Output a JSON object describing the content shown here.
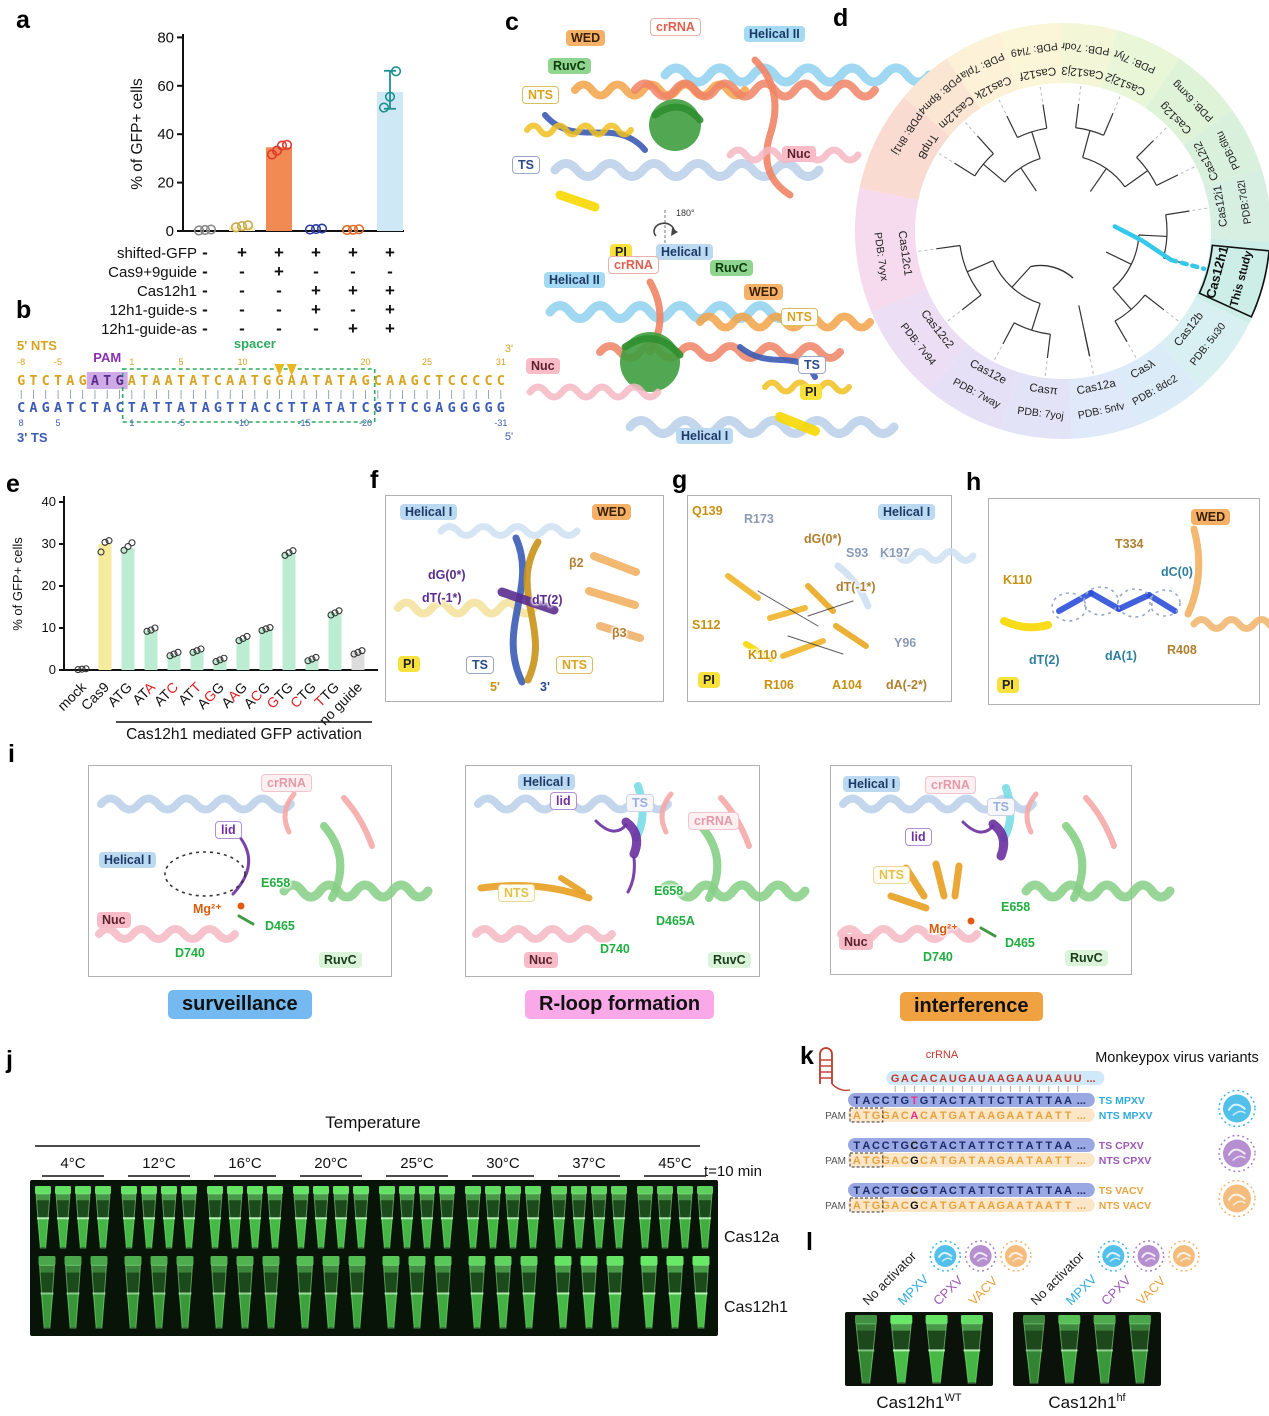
{
  "panels": {
    "a": "a",
    "b": "b",
    "c": "c",
    "d": "d",
    "e": "e",
    "f": "f",
    "g": "g",
    "h": "h",
    "i": "i",
    "j": "j",
    "k": "k",
    "l": "l"
  },
  "chart_data": [
    {
      "type": "bar",
      "panel": "a",
      "title": "",
      "ylabel": "% of GFP+ cells",
      "xlabel": "",
      "ylim": [
        0,
        80
      ],
      "yticks": [
        0,
        20,
        40,
        60,
        80
      ],
      "grid": false,
      "categories": [
        "1",
        "2",
        "3",
        "4",
        "5",
        "6"
      ],
      "values": [
        0.4,
        1.9,
        34.6,
        0.8,
        0.5,
        57.5
      ],
      "points": [
        [
          0.2,
          0.4,
          0.6
        ],
        [
          1.5,
          2.0,
          2.4
        ],
        [
          31.6,
          33.2,
          35.3,
          35.6
        ],
        [
          0.6,
          0.8,
          1.0
        ],
        [
          0.4,
          0.5,
          0.7
        ],
        [
          51.0,
          55.5,
          66.0
        ]
      ],
      "bar_colors": [
        "none",
        "#f6eec6",
        "#f28a54",
        "none",
        "none",
        "#cfe8f6"
      ],
      "point_colors": [
        "#8a8a8a",
        "#c9a94b",
        "#e03a2e",
        "#2b3aa0",
        "#e06b28",
        "#1f9090"
      ],
      "error_bars": [
        null,
        null,
        null,
        null,
        null,
        [
          50.5,
          66.2
        ]
      ],
      "condition_rows": [
        "shifted-GFP",
        "Cas9+9guide",
        "Cas12h1",
        "12h1-guide-s",
        "12h1-guide-as"
      ],
      "condition_matrix": [
        [
          "-",
          "+",
          "+",
          "+",
          "+",
          "+"
        ],
        [
          "-",
          "-",
          "+",
          "-",
          "-",
          "-"
        ],
        [
          "-",
          "-",
          "-",
          "+",
          "+",
          "+"
        ],
        [
          "-",
          "-",
          "-",
          "+",
          "-",
          "+"
        ],
        [
          "-",
          "-",
          "-",
          "-",
          "+",
          "+"
        ]
      ]
    },
    {
      "type": "bar",
      "panel": "e",
      "title": "",
      "ylabel": "% of GFP+ cells",
      "xlabel": "Cas12h1 mediated GFP activation",
      "ylim": [
        0,
        40
      ],
      "yticks": [
        0,
        10,
        20,
        30,
        40
      ],
      "grid": false,
      "categories": [
        "mock",
        "Cas9",
        "ATG",
        "ATA",
        "ATC",
        "ATT",
        "AGG",
        "AAG",
        "ACG",
        "GTG",
        "CTG",
        "TTG",
        "no guide"
      ],
      "red_letter_indices": [
        [],
        [],
        [],
        [
          2
        ],
        [
          2
        ],
        [
          2
        ],
        [
          1
        ],
        [
          1
        ],
        [
          1
        ],
        [
          0
        ],
        [
          0
        ],
        [
          0
        ],
        []
      ],
      "values": [
        0.2,
        30.0,
        29.0,
        9.4,
        3.7,
        4.5,
        2.4,
        7.4,
        9.7,
        27.9,
        2.6,
        13.6,
        4.1
      ],
      "points": [
        [
          0.1,
          0.2,
          0.3
        ],
        [
          28.1,
          30.4,
          30.8
        ],
        [
          28.5,
          29.4,
          30.3
        ],
        [
          9.2,
          9.5,
          10.0
        ],
        [
          3.4,
          3.8,
          4.2
        ],
        [
          4.2,
          4.6,
          5.0
        ],
        [
          2.0,
          2.4,
          2.8
        ],
        [
          7.0,
          7.5,
          8.0
        ],
        [
          9.4,
          9.8,
          10.1
        ],
        [
          27.3,
          27.9,
          28.4
        ],
        [
          2.2,
          2.6,
          3.0
        ],
        [
          13.1,
          13.6,
          14.1
        ],
        [
          3.8,
          4.2,
          4.6
        ]
      ],
      "bar_colors": [
        "none",
        "#f6ea9c",
        "#bcecd2",
        "#bcecd2",
        "#bcecd2",
        "#bcecd2",
        "#bcecd2",
        "#bcecd2",
        "#bcecd2",
        "#bcecd2",
        "#bcecd2",
        "#bcecd2",
        "#dcdcdc"
      ],
      "bracket_span": [
        2,
        12
      ]
    }
  ],
  "panel_b": {
    "label_5nts": "5' NTS",
    "label_3ts": "3' TS",
    "pam_label": "PAM",
    "spacer_label": "spacer",
    "top_3end": "3'",
    "bottom_5end": "5'",
    "top": {
      "prefix": "GTCTAG",
      "pam": "ATG",
      "spacer": "ATAATATCAATGGAATATAG",
      "suffix": "CAAGCTCCCCC"
    },
    "bottom": {
      "prefix": "CAGATCTAC",
      "spacer": "TATTATAGTTACCTTATATC",
      "suffix": "GTTCGAGGGGG"
    },
    "top_numbers": [
      {
        "n": "-8",
        "i": 0
      },
      {
        "n": "-5",
        "i": 3
      },
      {
        "n": "1",
        "i": 9
      },
      {
        "n": "5",
        "i": 13
      },
      {
        "n": "10",
        "i": 18
      },
      {
        "n": "20",
        "i": 28
      },
      {
        "n": "25",
        "i": 33
      },
      {
        "n": "31",
        "i": 39
      }
    ],
    "bottom_numbers": [
      {
        "n": "8",
        "i": 0
      },
      {
        "n": "5",
        "i": 3
      },
      {
        "n": "1",
        "i": 9
      },
      {
        "n": "-5",
        "i": 13
      },
      {
        "n": "-10",
        "i": 18
      },
      {
        "n": "-15",
        "i": 23
      },
      {
        "n": "-20",
        "i": 28
      },
      {
        "n": "-31",
        "i": 39
      }
    ],
    "cleavage_indices": [
      21,
      22
    ]
  },
  "panel_c": {
    "top_labels": [
      "crRNA",
      "WED",
      "RuvC",
      "NTS",
      "TS",
      "PI",
      "Helical I",
      "Helical II",
      "Nuc"
    ],
    "rotation_label": "180°",
    "bottom_labels": [
      "crRNA",
      "Helical II",
      "RuvC",
      "WED",
      "NTS",
      "Nuc",
      "TS",
      "PI",
      "Helical I"
    ]
  },
  "panel_d": {
    "branch_highlight_color": "#35c8ea",
    "taxa": [
      {
        "name": "TnpB",
        "pdb": "PDB: 8h1j",
        "angle": -58,
        "color": "#fadbd2"
      },
      {
        "name": "Cas12m",
        "pdb": "PDB: 8pm4",
        "angle": -42,
        "color": "#fbe6d4"
      },
      {
        "name": "Cas12k",
        "pdb": "PDB: 7pla",
        "angle": -26,
        "color": "#fdf2d7"
      },
      {
        "name": "Cas12f",
        "pdb": "PDB: 7l49",
        "angle": -9,
        "color": "#fcf6d8"
      },
      {
        "name": "Cas12j3",
        "pdb": "PDB: 7odr",
        "angle": 7,
        "color": "#f3f7d7"
      },
      {
        "name": "Cas12j2",
        "pdb": "PDB: 7lyt",
        "angle": 23,
        "color": "#e9f6d8"
      },
      {
        "name": "Cas12g",
        "pdb": "PDB: 6xmg",
        "angle": 45,
        "color": "#def3d8"
      },
      {
        "name": "Cas12i2",
        "pdb": "PDB:6ltu",
        "angle": 64,
        "color": "#d9f1dc"
      },
      {
        "name": "Cas12i1",
        "pdb": "PDB:7d2l",
        "angle": 81,
        "color": "#d7efe2"
      },
      {
        "name": "Cas12h1",
        "pdb": "This study",
        "angle": 105,
        "color": "#cceee6",
        "highlight": true
      },
      {
        "name": "Cas12b",
        "pdb": "PDB: 5u30",
        "angle": 128,
        "color": "#d9f0f3"
      },
      {
        "name": "Casλ",
        "pdb": "PDB: 8dc2",
        "angle": 150,
        "color": "#dcebf8"
      },
      {
        "name": "Cas12a",
        "pdb": "PDB: 5nfv",
        "angle": 168,
        "color": "#dfe9fa"
      },
      {
        "name": "Casπ",
        "pdb": "PDB: 7yoj",
        "angle": -173,
        "color": "#e3e3f8"
      },
      {
        "name": "Cas12e",
        "pdb": "PDB: 7way",
        "angle": -152,
        "color": "#e6e0f6"
      },
      {
        "name": "Cas12c2",
        "pdb": "PDB: 7v94",
        "angle": -128,
        "color": "#ecdef4"
      },
      {
        "name": "Cas12c1",
        "pdb": "PDB: 7vyx",
        "angle": -98,
        "color": "#f6dbee"
      }
    ]
  },
  "panel_f": {
    "labels": [
      "Helical I",
      "WED",
      "dG(0*)",
      "dT(-1*)",
      "dT(2)",
      "β2",
      "β3",
      "PI",
      "TS",
      "NTS",
      "5'",
      "3'"
    ]
  },
  "panel_g": {
    "labels": [
      "Q139",
      "R173",
      "dG(0*)",
      "S93",
      "K197",
      "dT(-1*)",
      "S112",
      "K110",
      "Y96",
      "R106",
      "A104",
      "dA(-2*)",
      "PI",
      "Helical I"
    ]
  },
  "panel_h": {
    "labels": [
      "WED",
      "T334",
      "dC(0)",
      "K110",
      "dT(2)",
      "dA(1)",
      "R408",
      "PI"
    ]
  },
  "panel_i": {
    "sub": [
      {
        "labels": [
          "crRNA",
          "lid",
          "Helical I",
          "Nuc",
          "Mg²⁺",
          "E658",
          "D465",
          "D740",
          "RuvC"
        ],
        "caption": "surveillance",
        "caption_color": "#74b9f0"
      },
      {
        "labels": [
          "Helical I",
          "lid",
          "TS",
          "crRNA",
          "NTS",
          "E658",
          "D465A",
          "D740",
          "Nuc",
          "RuvC"
        ],
        "caption": "R-loop formation",
        "caption_color": "#f9a8e8"
      },
      {
        "labels": [
          "Helical I",
          "crRNA",
          "TS",
          "lid",
          "NTS",
          "Mg²⁺",
          "Nuc",
          "E658",
          "D465",
          "D740",
          "RuvC"
        ],
        "caption": "interference",
        "caption_color": "#f0a240"
      }
    ]
  },
  "panel_j": {
    "title": "Temperature",
    "temps": [
      "4°C",
      "12°C",
      "16°C",
      "20°C",
      "25°C",
      "30°C",
      "37°C",
      "45°C"
    ],
    "time_label": "t=10 min",
    "row_labels": [
      "Cas12a",
      "Cas12h1"
    ]
  },
  "panel_k": {
    "crRNA_label": "crRNA",
    "crRNA_seq": "GACACAUGAUAAGAAUAAUU",
    "ellipsis": "...",
    "title": "Monkeypox virus variants",
    "pam_label": "PAM",
    "rows": [
      {
        "ts": "TACCTGTGTACTATTCTTATTAA",
        "nts": "ATGGACACATGATAAGAATAATT",
        "ts_label": "TS MPXV",
        "nts_label": "NTS MPXV",
        "label_color": "#2eaadc",
        "variant_index": 6,
        "variant_style": "pink"
      },
      {
        "ts": "TACCTGCGTACTATTCTTATTAA",
        "nts": "ATGGACGCATGATAAGAATAATT",
        "ts_label": "TS CPXV",
        "nts_label": "NTS CPXV",
        "label_color": "#9b59b6",
        "variant_index": 6,
        "variant_style": "bold"
      },
      {
        "ts": "TACCTGCGTACTATTCTTATTAA",
        "nts": "ATGGACGCATGATAAGAATAATT",
        "ts_label": "TS VACV",
        "nts_label": "NTS VACV",
        "label_color": "#e8a33d",
        "variant_index": 6,
        "variant_style": "bold"
      }
    ],
    "virus_colors": [
      "#35b5e5",
      "#a87bc8",
      "#f2b267"
    ]
  },
  "panel_l": {
    "groups": [
      "No activator",
      "MPXV",
      "CPXV",
      "VACV"
    ],
    "group_colors": [
      "#222222",
      "#2eaadc",
      "#9b59b6",
      "#e8a33d"
    ],
    "virus_colors": [
      "#35b5e5",
      "#a87bc8",
      "#f2b267"
    ],
    "captions": [
      {
        "base": "Cas12h1",
        "sup": "WT"
      },
      {
        "base": "Cas12h1",
        "sup": "hf"
      }
    ]
  }
}
